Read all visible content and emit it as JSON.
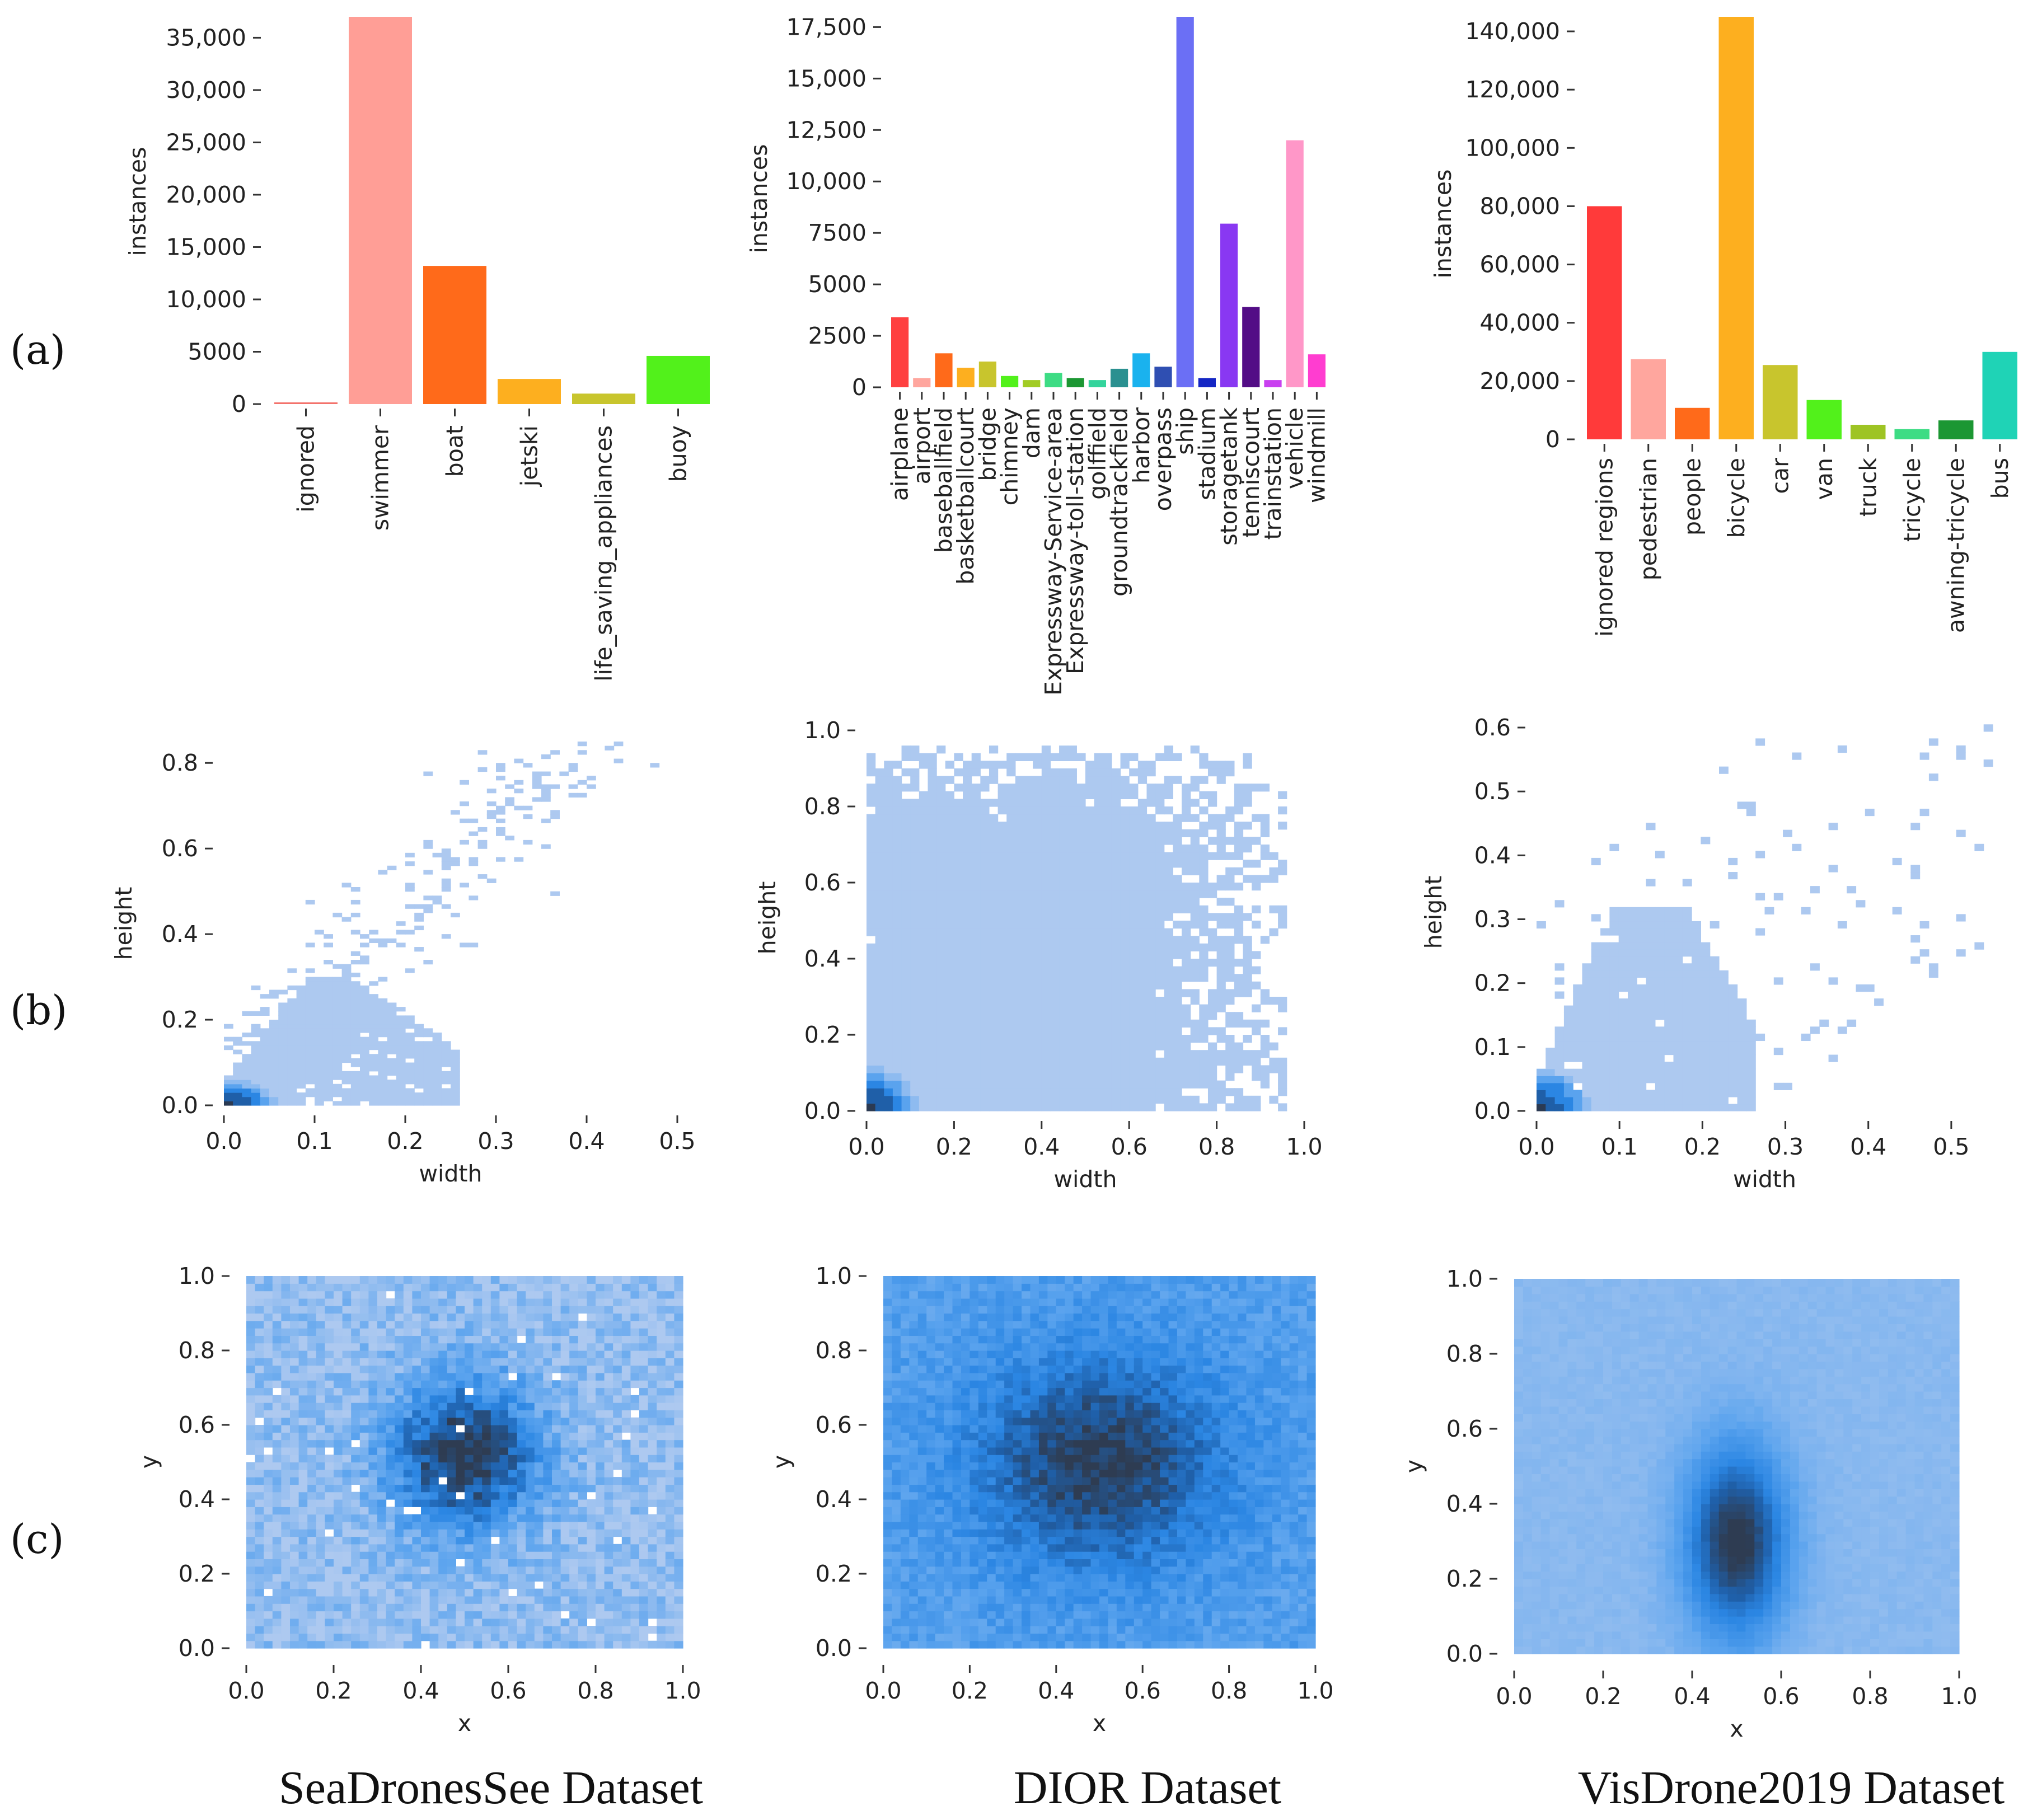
{
  "row_labels": [
    "(a)",
    "(b)",
    "(c)"
  ],
  "datasets": [
    "SeaDronesSee Dataset",
    "DIOR Dataset",
    "VisDrone2019 Dataset"
  ],
  "chart_data": [
    {
      "id": "a1",
      "type": "bar",
      "dataset": "SeaDronesSee Dataset",
      "title": "",
      "xlabel": "",
      "ylabel": "instances",
      "ylim": [
        0,
        37000
      ],
      "yticks": [
        0,
        5000,
        10000,
        15000,
        20000,
        25000,
        30000,
        35000
      ],
      "ytick_labels": [
        "0",
        "5000",
        "10,000",
        "15,000",
        "20,000",
        "25,000",
        "30,000",
        "35,000"
      ],
      "categories": [
        "ignored",
        "swimmer",
        "boat",
        "jetski",
        "life_saving_appliances",
        "buoy"
      ],
      "values": [
        120,
        37000,
        13200,
        2400,
        1000,
        4600
      ],
      "colors": [
        "#f3726b",
        "#ff9e96",
        "#ff6a1a",
        "#fdaf1f",
        "#c8c52d",
        "#52f11b"
      ]
    },
    {
      "id": "a2",
      "type": "bar",
      "dataset": "DIOR Dataset",
      "title": "",
      "xlabel": "",
      "ylabel": "instances",
      "ylim": [
        0,
        18000
      ],
      "yticks": [
        0,
        2500,
        5000,
        7500,
        10000,
        12500,
        15000,
        17500
      ],
      "ytick_labels": [
        "0",
        "2500",
        "5000",
        "7500",
        "10,000",
        "12,500",
        "15,000",
        "17,500"
      ],
      "categories": [
        "airplane",
        "airport",
        "baseballfield",
        "basketballcourt",
        "bridge",
        "chimney",
        "dam",
        "Expressway-Service-area",
        "Expressway-toll-station",
        "golffield",
        "groundtrackfield",
        "harbor",
        "overpass",
        "ship",
        "stadium",
        "storagetank",
        "tenniscourt",
        "trainstation",
        "vehicle",
        "windmill"
      ],
      "values": [
        3400,
        450,
        1650,
        950,
        1250,
        550,
        350,
        700,
        450,
        350,
        900,
        1650,
        1000,
        18000,
        450,
        7950,
        3900,
        350,
        12000,
        1600
      ],
      "colors": [
        "#ff4040",
        "#ffa69e",
        "#ff6a1a",
        "#fdaf1f",
        "#c8c52d",
        "#52f11b",
        "#a2cc24",
        "#3ddc84",
        "#1c9733",
        "#34d49c",
        "#2a9090",
        "#1ab2ee",
        "#2f4fb2",
        "#6b6ff5",
        "#1426c4",
        "#8938f2",
        "#530d86",
        "#c940f0",
        "#ff97c8",
        "#ff3dd0"
      ]
    },
    {
      "id": "a3",
      "type": "bar",
      "dataset": "VisDrone2019 Dataset",
      "title": "",
      "xlabel": "",
      "ylabel": "instances",
      "ylim": [
        0,
        145000
      ],
      "yticks": [
        0,
        20000,
        40000,
        60000,
        80000,
        100000,
        120000,
        140000
      ],
      "ytick_labels": [
        "0",
        "20,000",
        "40,000",
        "60,000",
        "80,000",
        "100,000",
        "120,000",
        "140,000"
      ],
      "categories": [
        "ignored regions",
        "pedestrian",
        "people",
        "bicycle",
        "car",
        "van",
        "truck",
        "tricycle",
        "awning-tricycle",
        "bus"
      ],
      "values": [
        80000,
        27500,
        10800,
        145000,
        25500,
        13500,
        5000,
        3500,
        6500,
        30000
      ],
      "colors": [
        "#ff3a3a",
        "#ffa69e",
        "#ff6a1a",
        "#fdaf1f",
        "#c8c52d",
        "#52f11b",
        "#9ec424",
        "#3ddc84",
        "#1c9733",
        "#1fd3b6"
      ]
    },
    {
      "id": "b1",
      "type": "heatmap",
      "dataset": "SeaDronesSee Dataset",
      "title": "",
      "xlabel": "width",
      "ylabel": "height",
      "xlim": [
        0,
        0.5
      ],
      "ylim": [
        0,
        0.85
      ],
      "xticks": [
        0.0,
        0.1,
        0.2,
        0.3,
        0.4,
        0.5
      ],
      "xtick_labels": [
        "0.0",
        "0.1",
        "0.2",
        "0.3",
        "0.4",
        "0.5"
      ],
      "yticks": [
        0.0,
        0.2,
        0.4,
        0.6,
        0.8
      ],
      "ytick_labels": [
        "0.0",
        "0.2",
        "0.4",
        "0.6",
        "0.8"
      ],
      "distribution": "2D histogram of box width vs height; dense near origin, sparse outliers up to (0.5, 0.85)"
    },
    {
      "id": "b2",
      "type": "heatmap",
      "dataset": "DIOR Dataset",
      "title": "",
      "xlabel": "width",
      "ylabel": "height",
      "xlim": [
        0,
        1.0
      ],
      "ylim": [
        0,
        1.0
      ],
      "xticks": [
        0.0,
        0.2,
        0.4,
        0.6,
        0.8,
        1.0
      ],
      "xtick_labels": [
        "0.0",
        "0.2",
        "0.4",
        "0.6",
        "0.8",
        "1.0"
      ],
      "yticks": [
        0.0,
        0.2,
        0.4,
        0.6,
        0.8,
        1.0
      ],
      "ytick_labels": [
        "0.0",
        "0.2",
        "0.4",
        "0.6",
        "0.8",
        "1.0"
      ],
      "distribution": "2D histogram of box width vs height; broad coverage of [0,1]x[0,1], densest near origin"
    },
    {
      "id": "b3",
      "type": "heatmap",
      "dataset": "VisDrone2019 Dataset",
      "title": "",
      "xlabel": "width",
      "ylabel": "height",
      "xlim": [
        0,
        0.55
      ],
      "ylim": [
        0,
        0.6
      ],
      "xticks": [
        0.0,
        0.1,
        0.2,
        0.3,
        0.4,
        0.5
      ],
      "xtick_labels": [
        "0.0",
        "0.1",
        "0.2",
        "0.3",
        "0.4",
        "0.5"
      ],
      "yticks": [
        0.0,
        0.1,
        0.2,
        0.3,
        0.4,
        0.5,
        0.6
      ],
      "ytick_labels": [
        "0.0",
        "0.1",
        "0.2",
        "0.3",
        "0.4",
        "0.5",
        "0.6"
      ],
      "distribution": "2D histogram of box width vs height; dense near origin, wedge up to about (0.3, 0.35)"
    },
    {
      "id": "c1",
      "type": "heatmap",
      "dataset": "SeaDronesSee Dataset",
      "title": "",
      "xlabel": "x",
      "ylabel": "y",
      "xlim": [
        0,
        1.0
      ],
      "ylim": [
        0,
        1.0
      ],
      "xticks": [
        0.0,
        0.2,
        0.4,
        0.6,
        0.8,
        1.0
      ],
      "xtick_labels": [
        "0.0",
        "0.2",
        "0.4",
        "0.6",
        "0.8",
        "1.0"
      ],
      "yticks": [
        0.0,
        0.2,
        0.4,
        0.6,
        0.8,
        1.0
      ],
      "ytick_labels": [
        "0.0",
        "0.2",
        "0.4",
        "0.6",
        "0.8",
        "1.0"
      ],
      "center": [
        0.5,
        0.52
      ],
      "spread": [
        0.12,
        0.14
      ],
      "distribution": "2D histogram of box centers; peak near (0.5, 0.52)"
    },
    {
      "id": "c2",
      "type": "heatmap",
      "dataset": "DIOR Dataset",
      "title": "",
      "xlabel": "x",
      "ylabel": "y",
      "xlim": [
        0,
        1.0
      ],
      "ylim": [
        0,
        1.0
      ],
      "xticks": [
        0.0,
        0.2,
        0.4,
        0.6,
        0.8,
        1.0
      ],
      "xtick_labels": [
        "0.0",
        "0.2",
        "0.4",
        "0.6",
        "0.8",
        "1.0"
      ],
      "yticks": [
        0.0,
        0.2,
        0.4,
        0.6,
        0.8,
        1.0
      ],
      "ytick_labels": [
        "0.0",
        "0.2",
        "0.4",
        "0.6",
        "0.8",
        "1.0"
      ],
      "center": [
        0.5,
        0.5
      ],
      "spread": [
        0.2,
        0.2
      ],
      "distribution": "2D histogram of box centers; broad peak near (0.5, 0.5)"
    },
    {
      "id": "c3",
      "type": "heatmap",
      "dataset": "VisDrone2019 Dataset",
      "title": "",
      "xlabel": "x",
      "ylabel": "y",
      "xlim": [
        0,
        1.0
      ],
      "ylim": [
        0,
        1.0
      ],
      "xticks": [
        0.0,
        0.2,
        0.4,
        0.6,
        0.8,
        1.0
      ],
      "xtick_labels": [
        "0.0",
        "0.2",
        "0.4",
        "0.6",
        "0.8",
        "1.0"
      ],
      "yticks": [
        0.0,
        0.2,
        0.4,
        0.6,
        0.8,
        1.0
      ],
      "ytick_labels": [
        "0.0",
        "0.2",
        "0.4",
        "0.6",
        "0.8",
        "1.0"
      ],
      "center": [
        0.5,
        0.3
      ],
      "spread": [
        0.08,
        0.18
      ],
      "distribution": "2D histogram of box centers; elongated peak near (0.5, 0.3)"
    }
  ]
}
